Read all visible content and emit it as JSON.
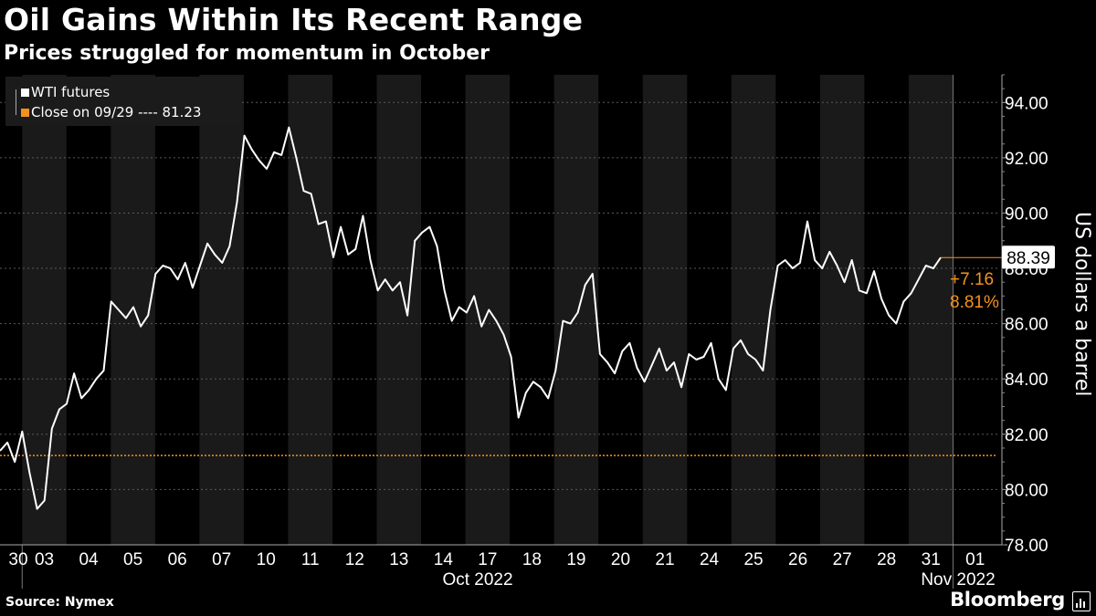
{
  "title": "Oil Gains Within Its Recent Range",
  "subtitle": "Prices struggled for momentum in October",
  "source": "Source: Nymex",
  "brand": "Bloomberg",
  "colors": {
    "background": "#000000",
    "band": "#1a1a1a",
    "series": "#ffffff",
    "accent": "#f5921e"
  },
  "chart_data": {
    "type": "line",
    "series": [
      {
        "name": "WTI futures",
        "values": [
          81.4,
          81.7,
          81.0,
          82.1,
          80.6,
          79.3,
          79.6,
          82.2,
          82.9,
          83.1,
          84.2,
          83.3,
          83.6,
          84.0,
          84.3,
          86.8,
          86.5,
          86.2,
          86.6,
          85.9,
          86.3,
          87.8,
          88.1,
          88.0,
          87.6,
          88.2,
          87.3,
          88.1,
          88.9,
          88.5,
          88.2,
          88.8,
          90.4,
          92.8,
          92.3,
          91.9,
          91.6,
          92.2,
          92.1,
          93.1,
          92.0,
          90.8,
          90.7,
          89.6,
          89.7,
          88.4,
          89.5,
          88.5,
          88.7,
          89.9,
          88.3,
          87.2,
          87.6,
          87.2,
          87.5,
          86.3,
          89.0,
          89.3,
          89.5,
          88.8,
          87.2,
          86.1,
          86.6,
          86.4,
          87.0,
          85.9,
          86.5,
          86.1,
          85.6,
          84.8,
          82.6,
          83.5,
          83.9,
          83.7,
          83.3,
          84.3,
          86.1,
          86.0,
          86.4,
          87.4,
          87.8,
          84.9,
          84.6,
          84.2,
          85.0,
          85.3,
          84.4,
          83.9,
          84.5,
          85.1,
          84.3,
          84.6,
          83.7,
          84.9,
          84.7,
          84.8,
          85.3,
          84.0,
          83.6,
          85.1,
          85.4,
          84.9,
          84.7,
          84.3,
          86.5,
          88.1,
          88.3,
          88.0,
          88.2,
          89.7,
          88.3,
          88.0,
          88.6,
          88.1,
          87.5,
          88.3,
          87.2,
          87.1,
          87.9,
          86.9,
          86.3,
          86.0,
          86.8,
          87.1,
          87.6,
          88.1,
          88.0,
          88.39
        ]
      }
    ],
    "reference": {
      "label": "Close on 09/29 ---- 81.23",
      "value": 81.23
    },
    "last": {
      "value": "88.39",
      "change": "+7.16",
      "pct": "8.81%"
    },
    "ylabel": "US dollars a barrel",
    "ylim": [
      78,
      95
    ],
    "yticks": [
      "78.00",
      "80.00",
      "82.00",
      "84.00",
      "86.00",
      "88.00",
      "90.00",
      "92.00",
      "94.00"
    ],
    "days": [
      "30",
      "03",
      "04",
      "05",
      "06",
      "07",
      "10",
      "11",
      "12",
      "13",
      "14",
      "17",
      "18",
      "19",
      "20",
      "21",
      "24",
      "25",
      "26",
      "27",
      "28",
      "31",
      "01"
    ],
    "month_labels": [
      {
        "label": "Oct 2022",
        "day_index": 11
      },
      {
        "label": "Nov 2022",
        "day_index": 22
      }
    ],
    "legend_position": "top-left",
    "grid": true
  }
}
